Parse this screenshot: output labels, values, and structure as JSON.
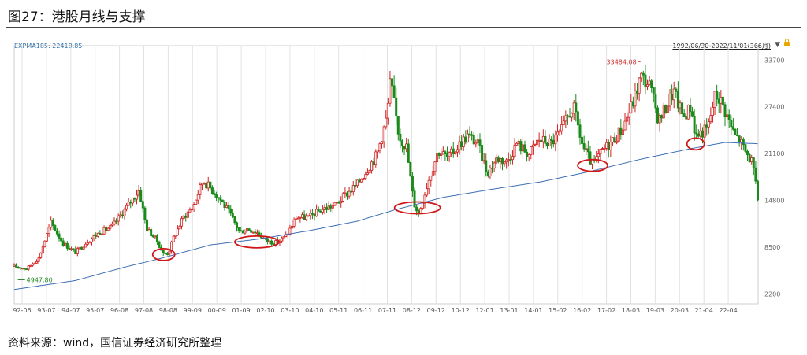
{
  "figure": {
    "title": "图27：港股月线与支撑",
    "source": "资料来源：wind，国信证券经济研究所整理"
  },
  "chart_data": {
    "type": "candlestick",
    "indicator_label": "EXPMA185: 22418.85",
    "date_range_label": "1992/06/30-2022/11/01(366月)",
    "y_ticks": [
      2200,
      8500,
      14800,
      21100,
      27400,
      33700
    ],
    "ylim": [
      1500,
      35000
    ],
    "x_tick_labels": [
      "92-06",
      "93-07",
      "94-07",
      "95-07",
      "96-08",
      "97-08",
      "98-08",
      "99-09",
      "00-09",
      "01-09",
      "02-10",
      "03-10",
      "04-10",
      "05-11",
      "06-11",
      "07-11",
      "08-12",
      "09-12",
      "10-12",
      "12-01",
      "13-01",
      "14-01",
      "15-02",
      "16-02",
      "17-02",
      "18-03",
      "19-03",
      "20-03",
      "21-04",
      "22-04"
    ],
    "annotations": [
      {
        "label": "33484.08",
        "month": 2018.05,
        "value": 33484.08,
        "color": "#d03030"
      },
      {
        "label": "4947.80",
        "month": 1992.65,
        "value": 4947.8,
        "color": "#2a8a2a"
      }
    ],
    "close_keypoints": [
      [
        1992.5,
        5900
      ],
      [
        1993.0,
        5600
      ],
      [
        1993.5,
        7000
      ],
      [
        1994.0,
        11800
      ],
      [
        1994.5,
        9000
      ],
      [
        1995.0,
        7800
      ],
      [
        1995.5,
        9300
      ],
      [
        1996.0,
        10500
      ],
      [
        1996.5,
        11300
      ],
      [
        1997.0,
        13500
      ],
      [
        1997.6,
        16200
      ],
      [
        1997.9,
        11000
      ],
      [
        1998.3,
        9500
      ],
      [
        1998.6,
        7500
      ],
      [
        1998.8,
        7800
      ],
      [
        1999.0,
        9800
      ],
      [
        1999.4,
        12500
      ],
      [
        1999.8,
        14000
      ],
      [
        2000.2,
        17500
      ],
      [
        2000.5,
        16500
      ],
      [
        2000.9,
        15000
      ],
      [
        2001.3,
        13000
      ],
      [
        2001.7,
        10500
      ],
      [
        2002.0,
        11000
      ],
      [
        2002.4,
        10500
      ],
      [
        2002.8,
        9300
      ],
      [
        2003.2,
        9100
      ],
      [
        2003.6,
        10000
      ],
      [
        2004.0,
        12500
      ],
      [
        2004.5,
        12500
      ],
      [
        2005.0,
        13500
      ],
      [
        2005.6,
        14200
      ],
      [
        2006.0,
        15500
      ],
      [
        2006.5,
        17000
      ],
      [
        2006.9,
        19000
      ],
      [
        2007.3,
        21000
      ],
      [
        2007.7,
        26000
      ],
      [
        2007.85,
        31000
      ],
      [
        2008.2,
        23500
      ],
      [
        2008.5,
        22000
      ],
      [
        2008.8,
        14500
      ],
      [
        2009.0,
        13000
      ],
      [
        2009.4,
        17500
      ],
      [
        2009.8,
        21500
      ],
      [
        2010.2,
        20500
      ],
      [
        2010.7,
        22500
      ],
      [
        2011.0,
        23500
      ],
      [
        2011.4,
        22500
      ],
      [
        2011.8,
        18500
      ],
      [
        2012.2,
        20500
      ],
      [
        2012.6,
        20000
      ],
      [
        2013.0,
        22500
      ],
      [
        2013.5,
        21000
      ],
      [
        2013.9,
        23000
      ],
      [
        2014.4,
        22500
      ],
      [
        2014.8,
        24000
      ],
      [
        2015.3,
        27500
      ],
      [
        2015.7,
        22000
      ],
      [
        2016.1,
        19500
      ],
      [
        2016.5,
        21500
      ],
      [
        2016.9,
        22800
      ],
      [
        2017.3,
        24500
      ],
      [
        2017.8,
        28500
      ],
      [
        2018.05,
        31500
      ],
      [
        2018.4,
        30500
      ],
      [
        2018.8,
        25500
      ],
      [
        2019.1,
        27500
      ],
      [
        2019.4,
        29500
      ],
      [
        2019.8,
        26000
      ],
      [
        2020.1,
        27500
      ],
      [
        2020.3,
        23500
      ],
      [
        2020.8,
        24500
      ],
      [
        2021.1,
        29000
      ],
      [
        2021.3,
        28500
      ],
      [
        2021.6,
        26000
      ],
      [
        2021.9,
        23500
      ],
      [
        2022.1,
        23000
      ],
      [
        2022.3,
        21500
      ],
      [
        2022.6,
        20000
      ],
      [
        2022.85,
        14700
      ]
    ],
    "ema_keypoints": [
      [
        1992.5,
        2800
      ],
      [
        1995.0,
        4000
      ],
      [
        1997.0,
        5800
      ],
      [
        1998.5,
        7000
      ],
      [
        2000.5,
        8800
      ],
      [
        2002.5,
        9600
      ],
      [
        2004.5,
        10700
      ],
      [
        2006.5,
        12000
      ],
      [
        2008.0,
        13500
      ],
      [
        2010.0,
        15200
      ],
      [
        2012.0,
        16300
      ],
      [
        2014.0,
        17300
      ],
      [
        2016.0,
        18700
      ],
      [
        2018.0,
        20300
      ],
      [
        2020.0,
        21700
      ],
      [
        2021.5,
        22600
      ],
      [
        2022.85,
        22419
      ]
    ],
    "support_circles": [
      {
        "month": 1998.6,
        "value": 7500
      },
      {
        "month": 2002.4,
        "value": 9200
      },
      {
        "month": 2008.95,
        "value": 13800
      },
      {
        "month": 2016.1,
        "value": 19500
      },
      {
        "month": 2020.3,
        "value": 22400
      }
    ],
    "colors": {
      "up": "#d02020",
      "down": "#1a8a1a",
      "ema": "#3d6fb5",
      "circle": "#d01818",
      "grid": "#e2e2e2"
    }
  }
}
